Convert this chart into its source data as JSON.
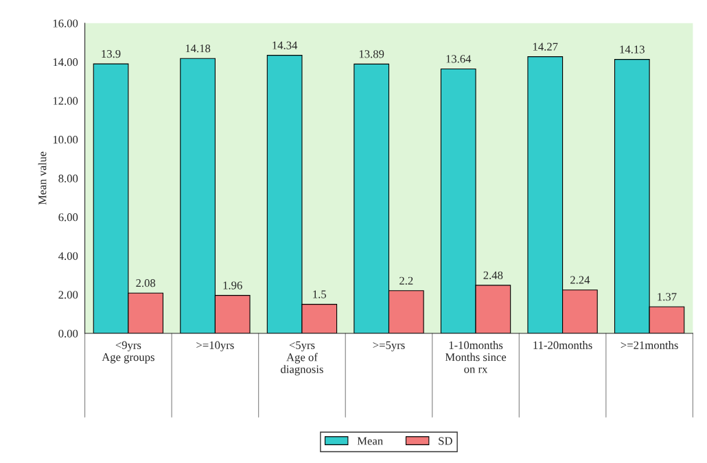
{
  "chart_data": {
    "type": "bar",
    "ylabel": "Mean value",
    "categories": [
      "<9yrs\nAge groups",
      ">=10yrs",
      "<5yrs\nAge of\ndiagnosis",
      ">=5yrs",
      "1-10months\nMonths since\non rx",
      "11-20months",
      ">=21months"
    ],
    "series": [
      {
        "name": "Mean",
        "color": "#33cccc",
        "values": [
          13.9,
          14.18,
          14.34,
          13.89,
          13.64,
          14.27,
          14.13
        ]
      },
      {
        "name": "SD",
        "color": "#f27a7a",
        "values": [
          2.08,
          1.96,
          1.5,
          2.2,
          2.48,
          2.24,
          1.37
        ]
      }
    ],
    "ylim": [
      0,
      16
    ],
    "yticks": [
      {
        "value": 0,
        "label": "0.00"
      },
      {
        "value": 2,
        "label": "2.00"
      },
      {
        "value": 4,
        "label": "4.00"
      },
      {
        "value": 6,
        "label": "6.00"
      },
      {
        "value": 8,
        "label": "8.00"
      },
      {
        "value": 10,
        "label": "10.00"
      },
      {
        "value": 12,
        "label": "12.00"
      },
      {
        "value": 14,
        "label": "14.00"
      },
      {
        "value": 16,
        "label": "16.00"
      }
    ],
    "data_labels": true,
    "legend": "bottom",
    "grid": false
  }
}
